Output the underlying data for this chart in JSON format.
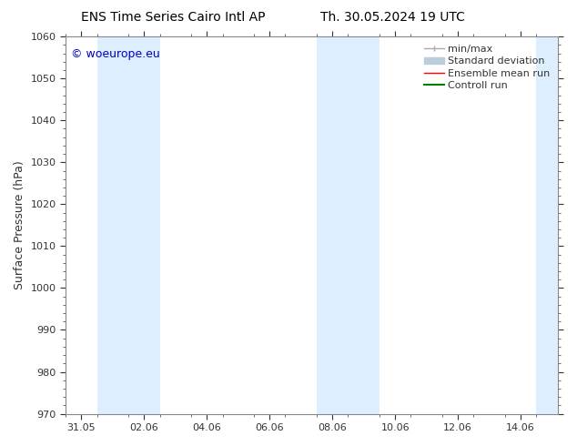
{
  "title_left": "ENS Time Series Cairo Intl AP",
  "title_right": "Th. 30.05.2024 19 UTC",
  "ylabel": "Surface Pressure (hPa)",
  "ylim": [
    970,
    1060
  ],
  "yticks": [
    970,
    980,
    990,
    1000,
    1010,
    1020,
    1030,
    1040,
    1050,
    1060
  ],
  "xtick_labels": [
    "31.05",
    "02.06",
    "04.06",
    "06.06",
    "08.06",
    "10.06",
    "12.06",
    "14.06"
  ],
  "xtick_positions": [
    0,
    2,
    4,
    6,
    8,
    10,
    12,
    14
  ],
  "xlim": [
    -0.5,
    15.2
  ],
  "shaded_bands": [
    {
      "x_start": 0.5,
      "x_end": 2.5
    },
    {
      "x_start": 7.5,
      "x_end": 9.5
    },
    {
      "x_start": 14.5,
      "x_end": 15.2
    }
  ],
  "band_color": "#ddeeff",
  "watermark": "© woeurope.eu",
  "watermark_color": "#0000cc",
  "legend_entries": [
    {
      "label": "min/max",
      "color": "#aaaaaa",
      "lw": 1.0
    },
    {
      "label": "Standard deviation",
      "color": "#bbccdd",
      "lw": 8
    },
    {
      "label": "Ensemble mean run",
      "color": "red",
      "lw": 1.0
    },
    {
      "label": "Controll run",
      "color": "green",
      "lw": 1.5
    }
  ],
  "bg_color": "#ffffff",
  "plot_bg_color": "#ffffff",
  "spine_color": "#888888",
  "tick_color": "#333333",
  "font_size_title": 10,
  "font_size_axis_label": 9,
  "font_size_tick": 8,
  "font_size_legend": 8,
  "font_size_watermark": 9
}
